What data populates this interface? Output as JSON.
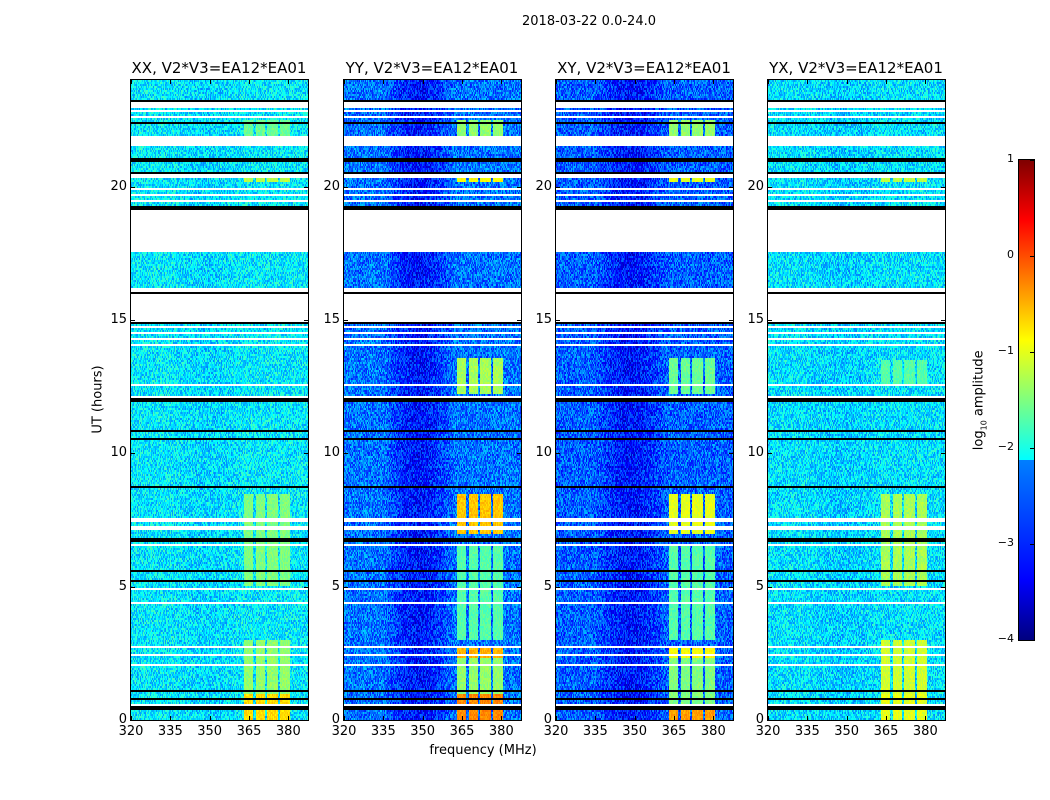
{
  "chart_data": {
    "type": "heatmap",
    "title": "2018-03-22 0.0-24.0",
    "xlabel": "frequency (MHz)",
    "ylabel": "UT (hours)",
    "xlim": [
      320,
      387.5
    ],
    "ylim": [
      0,
      24
    ],
    "xticks": [
      "320",
      "335",
      "350",
      "365",
      "380"
    ],
    "yticks": [
      "0",
      "5",
      "10",
      "15",
      "20"
    ],
    "colorbar": {
      "label": "log",
      "label_sub": "10",
      "label_rest": " amplitude",
      "range": [
        -4,
        1
      ],
      "ticks": [
        "1",
        "0",
        "−1",
        "−2",
        "−3",
        "−4"
      ],
      "colormap": "jet"
    },
    "rfi_channels": [
      [
        363,
        366.5
      ],
      [
        367.5,
        371
      ],
      [
        372,
        376
      ],
      [
        377,
        380.5
      ]
    ],
    "flagged_intervals": [
      [
        22.95,
        23.2
      ],
      [
        21.5,
        21.9
      ],
      [
        20.35,
        20.45
      ],
      [
        17.55,
        19.2
      ],
      [
        14.9,
        16.2
      ],
      [
        14.0,
        14.1
      ],
      [
        12.5,
        12.6
      ],
      [
        12.05,
        12.12
      ],
      [
        7.45,
        7.55
      ],
      [
        7.15,
        7.25
      ],
      [
        6.5,
        6.6
      ],
      [
        4.85,
        4.92
      ],
      [
        4.38,
        4.44
      ],
      [
        3.72,
        3.78
      ],
      [
        3.42,
        3.48
      ],
      [
        2.68,
        2.74
      ],
      [
        2.43,
        2.48
      ],
      [
        2.04,
        2.09
      ],
      [
        1.48,
        1.53
      ],
      [
        0.54,
        0.59
      ]
    ],
    "striped_intervals": [
      [
        19.2,
        20.0
      ],
      [
        22.4,
        23.0
      ],
      [
        14.1,
        14.9
      ]
    ],
    "black_lines": [
      23.2,
      22.4,
      21.0,
      20.5,
      19.2,
      16.0,
      14.9,
      12.0,
      10.87,
      10.57,
      8.74,
      6.75,
      5.62,
      5.2,
      1.12,
      0.82,
      0.45
    ],
    "panels": [
      {
        "title": "XX, V2*V3=EA12*EA01",
        "baseline": -2.2,
        "slope": 0.1,
        "rfi": [
          [
            0,
            1.0,
            -0.7
          ],
          [
            1.0,
            3.0,
            -1.4
          ],
          [
            5.0,
            8.5,
            -1.5
          ],
          [
            20.2,
            20.5,
            -1.2
          ],
          [
            21.5,
            22.5,
            -1.6
          ]
        ]
      },
      {
        "title": "YY, V2*V3=EA12*EA01",
        "baseline": -2.8,
        "slope": 0.5,
        "rfi": [
          [
            0,
            1.0,
            -0.3
          ],
          [
            2.3,
            2.8,
            -0.5
          ],
          [
            1.0,
            2.3,
            -1.4
          ],
          [
            3.0,
            6.5,
            -1.7
          ],
          [
            7.0,
            8.5,
            -0.6
          ],
          [
            12.2,
            13.6,
            -1.3
          ],
          [
            20.2,
            20.5,
            -0.9
          ],
          [
            21.5,
            22.5,
            -1.4
          ]
        ]
      },
      {
        "title": "XY, V2*V3=EA12*EA01",
        "baseline": -2.9,
        "slope": 0.4,
        "rfi": [
          [
            0,
            0.6,
            -0.4
          ],
          [
            2.3,
            2.8,
            -0.9
          ],
          [
            0.6,
            2.3,
            -1.5
          ],
          [
            3.0,
            6.5,
            -1.7
          ],
          [
            7.0,
            8.5,
            -1.0
          ],
          [
            12.2,
            13.6,
            -1.6
          ],
          [
            20.2,
            20.5,
            -1.0
          ],
          [
            21.5,
            22.5,
            -1.4
          ]
        ]
      },
      {
        "title": "YX, V2*V3=EA12*EA01",
        "baseline": -2.25,
        "slope": 0.1,
        "rfi": [
          [
            0,
            1.0,
            -1.0
          ],
          [
            1.0,
            3.0,
            -1.1
          ],
          [
            5.0,
            8.5,
            -1.3
          ],
          [
            12.5,
            13.5,
            -1.7
          ],
          [
            20.2,
            20.5,
            -1.2
          ]
        ]
      }
    ]
  }
}
